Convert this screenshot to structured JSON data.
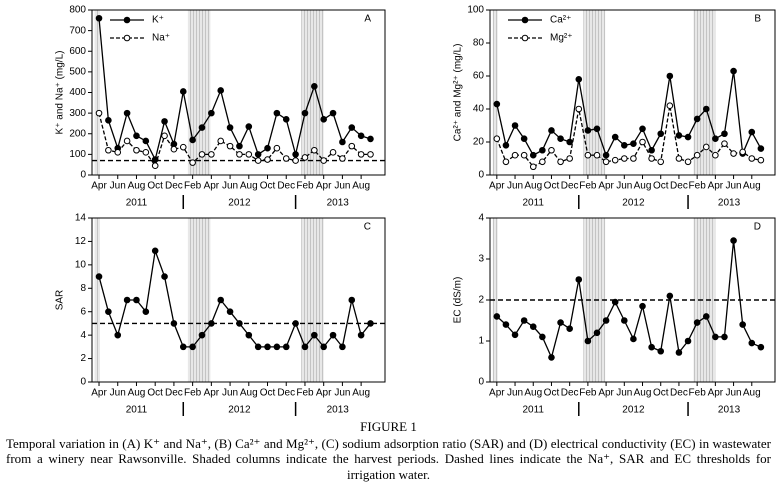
{
  "chart_data": [
    {
      "type": "line",
      "panel_label": "A",
      "ylabel": "K⁺ and Na⁺ (mg/L)",
      "categories": [
        "Apr",
        null,
        "Jun",
        null,
        "Aug",
        null,
        "Oct",
        null,
        "Dec",
        null,
        "Feb",
        null,
        "Apr",
        null,
        "Jun",
        null,
        "Aug",
        null,
        "Oct",
        null,
        "Dec",
        null,
        "Feb",
        null,
        "Apr",
        null,
        "Jun",
        null,
        "Aug",
        null
      ],
      "year_labels": [
        "2011",
        "2012",
        "2013"
      ],
      "series": [
        {
          "name": "K⁺",
          "color": "#000000",
          "marker": "filled",
          "dashed": false,
          "values": [
            760,
            265,
            130,
            300,
            190,
            165,
            75,
            260,
            150,
            405,
            170,
            230,
            300,
            410,
            230,
            140,
            235,
            100,
            130,
            300,
            270,
            100,
            300,
            430,
            270,
            300,
            160,
            230,
            190,
            175
          ]
        },
        {
          "name": "Na⁺",
          "color": "#000000",
          "marker": "open",
          "dashed": true,
          "values": [
            300,
            120,
            110,
            165,
            120,
            110,
            45,
            190,
            125,
            135,
            60,
            100,
            100,
            165,
            140,
            100,
            100,
            70,
            75,
            130,
            80,
            70,
            85,
            120,
            70,
            110,
            80,
            140,
            100,
            100
          ]
        }
      ],
      "reference_line": 70,
      "ylim": [
        0,
        800
      ],
      "yticks": [
        0,
        100,
        200,
        300,
        400,
        500,
        600,
        700,
        800
      ],
      "legend": "upper left"
    },
    {
      "type": "line",
      "panel_label": "B",
      "ylabel": "Ca²⁺ and Mg²⁺ (mg/L)",
      "categories": [
        "Apr",
        null,
        "Jun",
        null,
        "Aug",
        null,
        "Oct",
        null,
        "Dec",
        null,
        "Feb",
        null,
        "Apr",
        null,
        "Jun",
        null,
        "Aug",
        null,
        "Oct",
        null,
        "Dec",
        null,
        "Feb",
        null,
        "Apr",
        null,
        "Jun",
        null,
        "Aug",
        null
      ],
      "year_labels": [
        "2011",
        "2012",
        "2013"
      ],
      "series": [
        {
          "name": "Ca²⁺",
          "color": "#000000",
          "marker": "filled",
          "dashed": false,
          "values": [
            43,
            18,
            30,
            22,
            12,
            15,
            27,
            22,
            20,
            58,
            27,
            28,
            12,
            23,
            18,
            19,
            28,
            15,
            25,
            60,
            24,
            23,
            34,
            40,
            22,
            25,
            63,
            13,
            26,
            16
          ]
        },
        {
          "name": "Mg²⁺",
          "color": "#000000",
          "marker": "open",
          "dashed": true,
          "values": [
            22,
            8,
            12,
            12,
            5,
            8,
            15,
            8,
            10,
            40,
            12,
            12,
            8,
            9,
            10,
            10,
            20,
            10,
            8,
            42,
            10,
            8,
            12,
            17,
            12,
            19,
            13,
            14,
            10,
            9
          ]
        }
      ],
      "ylim": [
        0,
        100
      ],
      "yticks": [
        0,
        20,
        40,
        60,
        80,
        100
      ],
      "legend": "upper left"
    },
    {
      "type": "line",
      "panel_label": "C",
      "ylabel": "SAR",
      "categories": [
        "Apr",
        null,
        "Jun",
        null,
        "Aug",
        null,
        "Oct",
        null,
        "Dec",
        null,
        "Feb",
        null,
        "Apr",
        null,
        "Jun",
        null,
        "Aug",
        null,
        "Oct",
        null,
        "Dec",
        null,
        "Feb",
        null,
        "Apr",
        null,
        "Jun",
        null,
        "Aug",
        null
      ],
      "year_labels": [
        "2011",
        "2012",
        "2013"
      ],
      "series": [
        {
          "color": "#000000",
          "marker": "filled",
          "dashed": false,
          "values": [
            9,
            6,
            4,
            7,
            7,
            6,
            11.2,
            9,
            5,
            3,
            3,
            4,
            5,
            7,
            6,
            5,
            4,
            3,
            3,
            3,
            3,
            5,
            3,
            4,
            3,
            4,
            3,
            7,
            4,
            5
          ]
        }
      ],
      "reference_line": 5,
      "ylim": [
        0,
        14
      ],
      "yticks": [
        0,
        2,
        4,
        6,
        8,
        10,
        12,
        14
      ]
    },
    {
      "type": "line",
      "panel_label": "D",
      "ylabel": "EC (dS/m)",
      "categories": [
        "Apr",
        null,
        "Jun",
        null,
        "Aug",
        null,
        "Oct",
        null,
        "Dec",
        null,
        "Feb",
        null,
        "Apr",
        null,
        "Jun",
        null,
        "Aug",
        null,
        "Oct",
        null,
        "Dec",
        null,
        "Feb",
        null,
        "Apr",
        null,
        "Jun",
        null,
        "Aug",
        null
      ],
      "year_labels": [
        "2011",
        "2012",
        "2013"
      ],
      "series": [
        {
          "color": "#000000",
          "marker": "filled",
          "dashed": false,
          "values": [
            1.6,
            1.4,
            1.15,
            1.5,
            1.35,
            1.1,
            0.6,
            1.45,
            1.3,
            2.5,
            1.0,
            1.2,
            1.5,
            1.95,
            1.5,
            1.05,
            1.85,
            0.85,
            0.75,
            2.1,
            0.72,
            1.0,
            1.45,
            1.6,
            1.1,
            1.1,
            3.45,
            1.4,
            0.95,
            0.85
          ]
        }
      ],
      "reference_line": 2,
      "ylim": [
        0,
        4
      ],
      "yticks": [
        0,
        1,
        2,
        3,
        4
      ]
    }
  ],
  "caption": {
    "heading": "FIGURE 1",
    "text": "Temporal variation in (A) K⁺ and Na⁺, (B) Ca²⁺ and Mg²⁺, (C) sodium adsorption ratio (SAR) and (D) electrical conductivity (EC) in wastewater from a winery near Rawsonville. Shaded columns indicate the harvest periods. Dashed lines indicate the Na⁺, SAR and EC thresholds for irrigation water."
  }
}
